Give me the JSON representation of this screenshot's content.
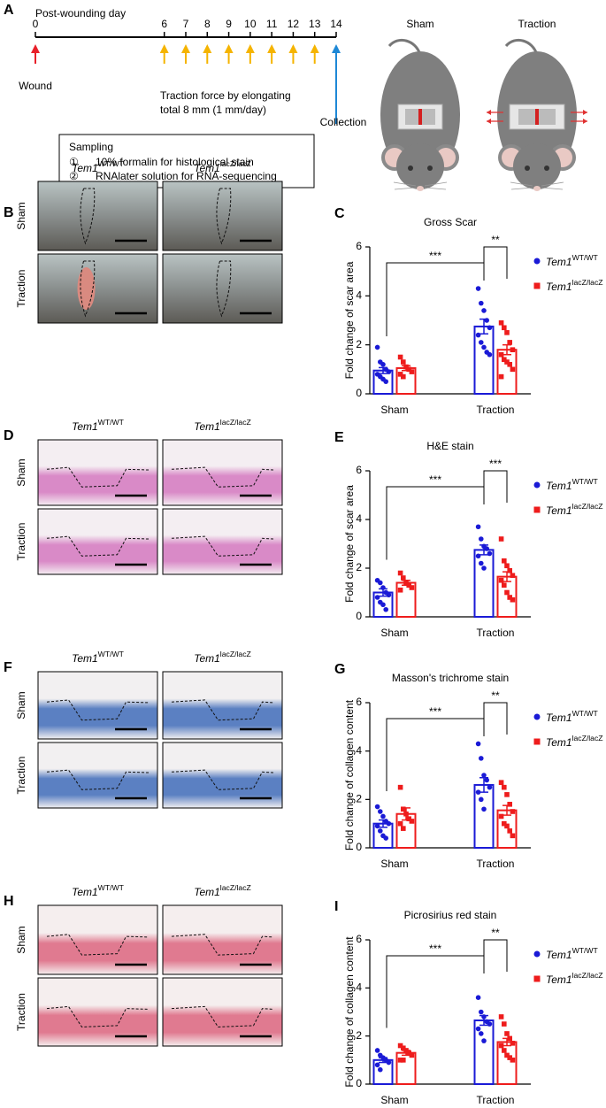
{
  "timeline": {
    "panel": "A",
    "title": "Post-wounding day",
    "days": [
      0,
      6,
      7,
      8,
      9,
      10,
      11,
      12,
      13,
      14
    ],
    "wound": "Wound",
    "traction": [
      "Traction force by elongating",
      "total 8 mm (1 mm/day)"
    ],
    "collection": "Collection"
  },
  "sampling": {
    "title": "Sampling",
    "items": [
      {
        "marker": "①",
        "text": "10% formalin for histological stain"
      },
      {
        "marker": "②",
        "text": "RNAlater solution for RNA-sequencing"
      }
    ]
  },
  "mice": [
    "Sham",
    "Traction"
  ],
  "image_panels": [
    {
      "panel": "B",
      "columns": [
        {
          "gene": "Tem1",
          "genotype": "WT/WT"
        },
        {
          "gene": "Tem1",
          "genotype": "lacZ/lacZ"
        }
      ],
      "rows": [
        "Sham",
        "Traction"
      ]
    },
    {
      "panel": "D",
      "columns": [
        {
          "gene": "Tem1",
          "genotype": "WT/WT"
        },
        {
          "gene": "Tem1",
          "genotype": "lacZ/lacZ"
        }
      ],
      "rows": [
        "Sham",
        "Traction"
      ]
    },
    {
      "panel": "F",
      "columns": [
        {
          "gene": "Tem1",
          "genotype": "WT/WT"
        },
        {
          "gene": "Tem1",
          "genotype": "lacZ/lacZ"
        }
      ],
      "rows": [
        "Sham",
        "Traction"
      ]
    },
    {
      "panel": "H",
      "columns": [
        {
          "gene": "Tem1",
          "genotype": "WT/WT"
        },
        {
          "gene": "Tem1",
          "genotype": "lacZ/lacZ"
        }
      ],
      "rows": [
        "Sham",
        "Traction"
      ]
    }
  ],
  "chart_data": [
    {
      "type": "bar",
      "panel": "C",
      "title": "Gross Scar",
      "y_label": "Fold change of scar area",
      "categories": [
        "Sham",
        "Traction"
      ],
      "series": [
        {
          "name": "Tem1",
          "name_superscript": "WT/WT",
          "color": "#1a1ad6",
          "values": [
            0.95,
            2.75
          ],
          "errors": [
            0.12,
            0.3
          ],
          "points": [
            [
              1.9,
              1.3,
              1.2,
              1.0,
              0.9,
              0.8,
              0.7,
              0.6,
              0.5
            ],
            [
              4.3,
              3.7,
              3.4,
              3.0,
              2.7,
              2.4,
              2.1,
              1.9,
              1.7,
              1.6
            ]
          ]
        },
        {
          "name": "Tem1",
          "name_superscript": "lacZ/lacZ",
          "color": "#ee1c1c",
          "values": [
            1.05,
            1.8
          ],
          "errors": [
            0.1,
            0.2
          ],
          "points": [
            [
              1.5,
              1.3,
              1.1,
              1.0,
              0.9,
              0.8,
              0.7
            ],
            [
              2.9,
              2.7,
              2.5,
              2.1,
              1.8,
              1.6,
              1.4,
              1.3,
              1.2,
              1.0,
              0.7
            ]
          ]
        }
      ],
      "annotations": [
        "***",
        "**"
      ],
      "ylim": [
        0,
        6
      ],
      "yticks": [
        0,
        2,
        4,
        6
      ]
    },
    {
      "type": "bar",
      "panel": "E",
      "title": "H&E stain",
      "y_label": "Fold change of scar area",
      "categories": [
        "Sham",
        "Traction"
      ],
      "series": [
        {
          "name": "Tem1",
          "name_superscript": "WT/WT",
          "color": "#1a1ad6",
          "values": [
            1.0,
            2.75
          ],
          "errors": [
            0.15,
            0.2
          ],
          "points": [
            [
              1.5,
              1.4,
              1.2,
              1.0,
              0.9,
              0.8,
              0.6,
              0.5,
              0.3
            ],
            [
              3.7,
              3.2,
              2.9,
              2.8,
              2.6,
              2.5,
              2.2,
              2.0
            ]
          ]
        },
        {
          "name": "Tem1",
          "name_superscript": "lacZ/lacZ",
          "color": "#ee1c1c",
          "values": [
            1.4,
            1.65
          ],
          "errors": [
            0.1,
            0.2
          ],
          "points": [
            [
              1.8,
              1.6,
              1.4,
              1.3,
              1.2,
              1.1
            ],
            [
              3.2,
              2.3,
              2.1,
              1.9,
              1.7,
              1.5,
              1.3,
              1.0,
              0.8,
              0.7
            ]
          ]
        }
      ],
      "annotations": [
        "***",
        "***"
      ],
      "ylim": [
        0,
        6
      ],
      "yticks": [
        0,
        2,
        4,
        6
      ]
    },
    {
      "type": "bar",
      "panel": "G",
      "title": "Masson's trichrome stain",
      "y_label": "Fold change of collagen content",
      "categories": [
        "Sham",
        "Traction"
      ],
      "series": [
        {
          "name": "Tem1",
          "name_superscript": "WT/WT",
          "color": "#1a1ad6",
          "values": [
            1.0,
            2.6
          ],
          "errors": [
            0.15,
            0.3
          ],
          "points": [
            [
              1.7,
              1.5,
              1.3,
              1.1,
              1.0,
              0.9,
              0.7,
              0.5,
              0.4
            ],
            [
              4.3,
              3.7,
              3.0,
              2.8,
              2.5,
              2.3,
              2.0,
              1.6
            ]
          ]
        },
        {
          "name": "Tem1",
          "name_superscript": "lacZ/lacZ",
          "color": "#ee1c1c",
          "values": [
            1.4,
            1.55
          ],
          "errors": [
            0.25,
            0.2
          ],
          "points": [
            [
              2.5,
              1.6,
              1.4,
              1.2,
              1.1,
              1.0,
              0.8
            ],
            [
              2.7,
              2.5,
              2.2,
              1.8,
              1.5,
              1.3,
              1.0,
              0.9,
              0.7,
              0.5
            ]
          ]
        }
      ],
      "annotations": [
        "***",
        "**"
      ],
      "ylim": [
        0,
        6
      ],
      "yticks": [
        0,
        2,
        4,
        6
      ]
    },
    {
      "type": "bar",
      "panel": "I",
      "title": "Picrosirius red stain",
      "y_label": "Fold change of collagen content",
      "categories": [
        "Sham",
        "Traction"
      ],
      "series": [
        {
          "name": "Tem1",
          "name_superscript": "WT/WT",
          "color": "#1a1ad6",
          "values": [
            1.0,
            2.65
          ],
          "errors": [
            0.1,
            0.2
          ],
          "points": [
            [
              1.4,
              1.2,
              1.1,
              1.0,
              0.9,
              0.8,
              0.6
            ],
            [
              3.6,
              3.0,
              2.8,
              2.6,
              2.5,
              2.3,
              2.1,
              1.8
            ]
          ]
        },
        {
          "name": "Tem1",
          "name_superscript": "lacZ/lacZ",
          "color": "#ee1c1c",
          "values": [
            1.3,
            1.75
          ],
          "errors": [
            0.1,
            0.15
          ],
          "points": [
            [
              1.6,
              1.5,
              1.4,
              1.3,
              1.2,
              1.0,
              1.0
            ],
            [
              2.8,
              2.5,
              2.1,
              1.9,
              1.7,
              1.6,
              1.4,
              1.2,
              1.1,
              1.0
            ]
          ]
        }
      ],
      "annotations": [
        "***",
        "**"
      ],
      "ylim": [
        0,
        6
      ],
      "yticks": [
        0,
        2,
        4,
        6
      ]
    }
  ]
}
